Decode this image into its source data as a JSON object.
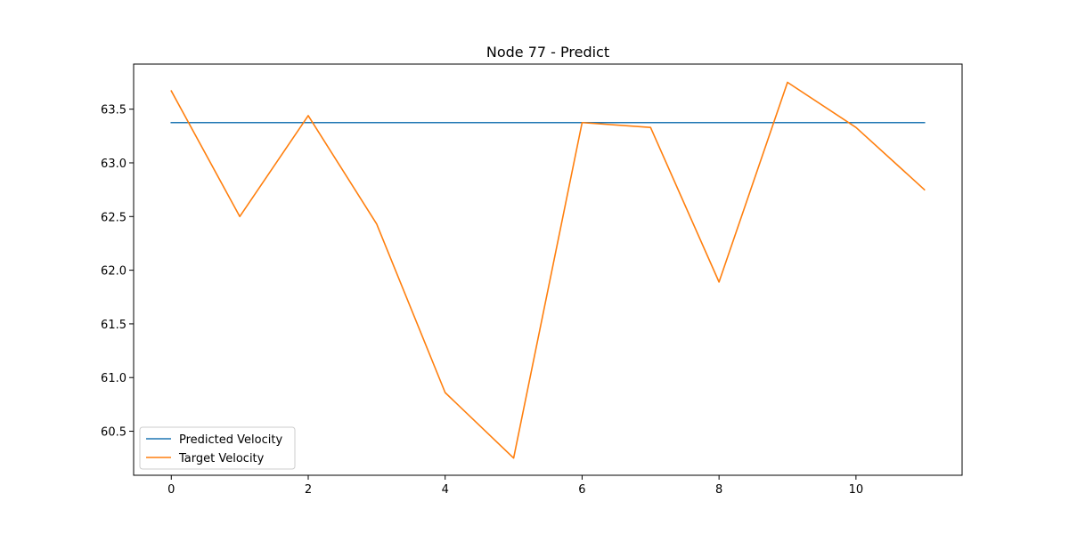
{
  "chart_data": {
    "type": "line",
    "title": "Node 77 - Predict",
    "xlabel": "",
    "ylabel": "",
    "x": [
      0,
      1,
      2,
      3,
      4,
      5,
      6,
      7,
      8,
      9,
      10,
      11
    ],
    "series": [
      {
        "name": "Predicted Velocity",
        "color": "#1f77b4",
        "values": [
          63.375,
          63.375,
          63.375,
          63.375,
          63.375,
          63.375,
          63.375,
          63.375,
          63.375,
          63.375,
          63.375,
          63.375
        ]
      },
      {
        "name": "Target Velocity",
        "color": "#ff7f0e",
        "values": [
          63.67,
          62.5,
          63.44,
          62.43,
          60.86,
          60.25,
          63.375,
          63.33,
          61.89,
          63.75,
          63.33,
          62.75
        ]
      }
    ],
    "xlim": [
      -0.55,
      11.55
    ],
    "ylim": [
      60.09,
      63.92
    ],
    "xticks": [
      0,
      2,
      4,
      6,
      8,
      10
    ],
    "xtick_labels": [
      "0",
      "2",
      "4",
      "6",
      "8",
      "10"
    ],
    "yticks": [
      60.5,
      61.0,
      61.5,
      62.0,
      62.5,
      63.0,
      63.5
    ],
    "ytick_labels": [
      "60.5",
      "61.0",
      "61.5",
      "62.0",
      "62.5",
      "63.0",
      "63.5"
    ],
    "grid": false,
    "legend_position": "lower-left"
  }
}
